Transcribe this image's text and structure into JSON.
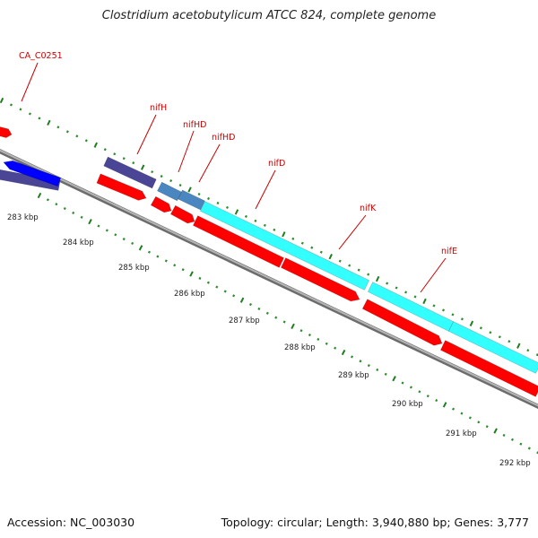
{
  "title": "Clostridium acetobutylicum ATCC 824, complete genome",
  "footer": {
    "accession": "Accession: NC_003030",
    "summary": "Topology: circular; Length: 3,940,880 bp; Genes: 3,777"
  },
  "gene_labels": [
    {
      "key": "ca_c0251",
      "text": "CA_C0251"
    },
    {
      "key": "nifh",
      "text": "nifH"
    },
    {
      "key": "nifhd_1",
      "text": "nifHD"
    },
    {
      "key": "nifhd_2",
      "text": "nifHD"
    },
    {
      "key": "nifd",
      "text": "nifD"
    },
    {
      "key": "nifk",
      "text": "nifK"
    },
    {
      "key": "nife",
      "text": "nifE"
    }
  ],
  "scale_ticks": [
    "283 kbp",
    "284 kbp",
    "285 kbp",
    "286 kbp",
    "287 kbp",
    "288 kbp",
    "289 kbp",
    "290 kbp",
    "291 kbp",
    "292 kbp"
  ],
  "colors": {
    "backbone": "#8a8a8a",
    "forward_cds": "#ff0000",
    "reverse_cds_blue": "#0000ff",
    "reverse_cds_slate": "#4b4595",
    "reverse_cds_steel": "#4a86c0",
    "reverse_cds_cyan": "#33ffff",
    "label_red": "#cc0000",
    "tick_green": "#2e8b2e"
  }
}
